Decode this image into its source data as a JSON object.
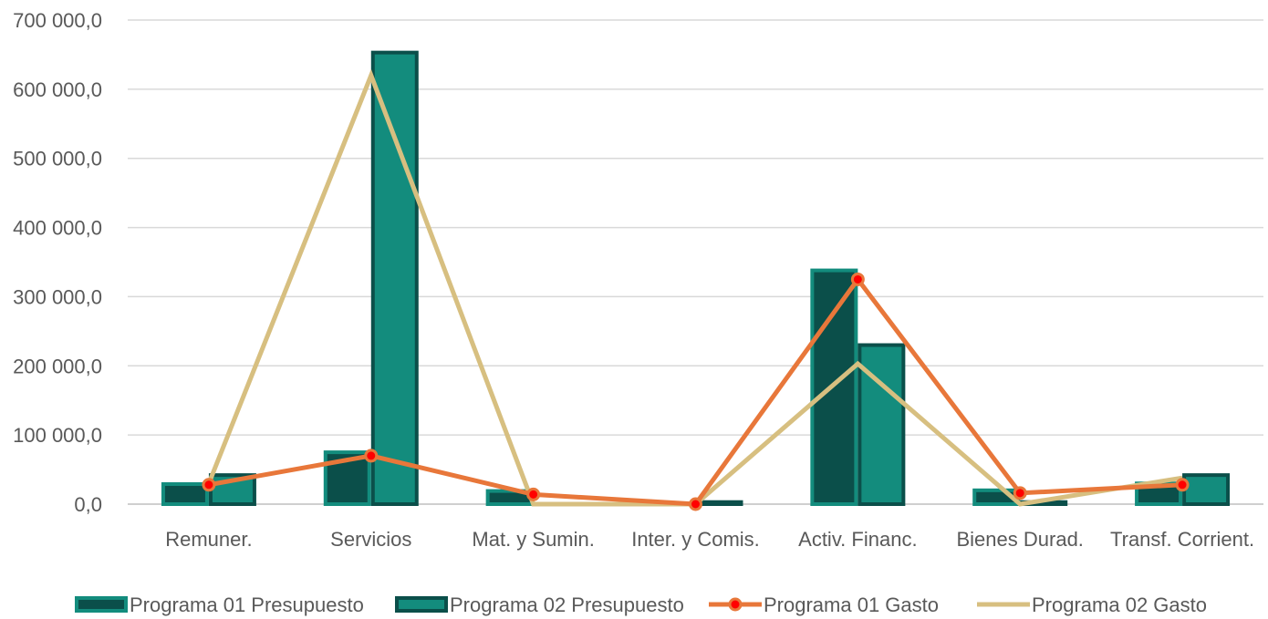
{
  "chart_data": {
    "type": "bar",
    "categories": [
      "Remuner.",
      "Servicios",
      "Mat. y Sumin.",
      "Inter. y Comis.",
      "Activ. Financ.",
      "Bienes Durad.",
      "Transf. Corrient."
    ],
    "ylim": [
      0,
      700000
    ],
    "yticks": [
      0,
      100000,
      200000,
      300000,
      400000,
      500000,
      600000,
      700000
    ],
    "ytick_labels": [
      "0,0",
      "100 000,0",
      "200 000,0",
      "300 000,0",
      "400 000,0",
      "500 000,0",
      "600 000,0",
      "700 000,0"
    ],
    "grid": true,
    "legend_position": "bottom",
    "series": [
      {
        "name": "Programa 01 Presupuesto",
        "kind": "bar",
        "values": [
          29000,
          75000,
          19000,
          0,
          338000,
          20000,
          30000
        ],
        "fill": "#0B4F4A",
        "stroke": "#138C7D"
      },
      {
        "name": "Programa 02 Presupuesto",
        "kind": "bar",
        "values": [
          42000,
          653000,
          0,
          3000,
          230000,
          3000,
          42000
        ],
        "fill": "#138C7D",
        "stroke": "#0B4F4A"
      },
      {
        "name": "Programa 01 Gasto",
        "kind": "line",
        "values": [
          28000,
          70000,
          14000,
          0,
          325000,
          16000,
          28000
        ],
        "color": "#E8773A",
        "marker_color": "#FF0000"
      },
      {
        "name": "Programa 02 Gasto",
        "kind": "line",
        "values": [
          30000,
          620000,
          0,
          0,
          203000,
          0,
          38000
        ],
        "color": "#D7BF80"
      }
    ]
  }
}
